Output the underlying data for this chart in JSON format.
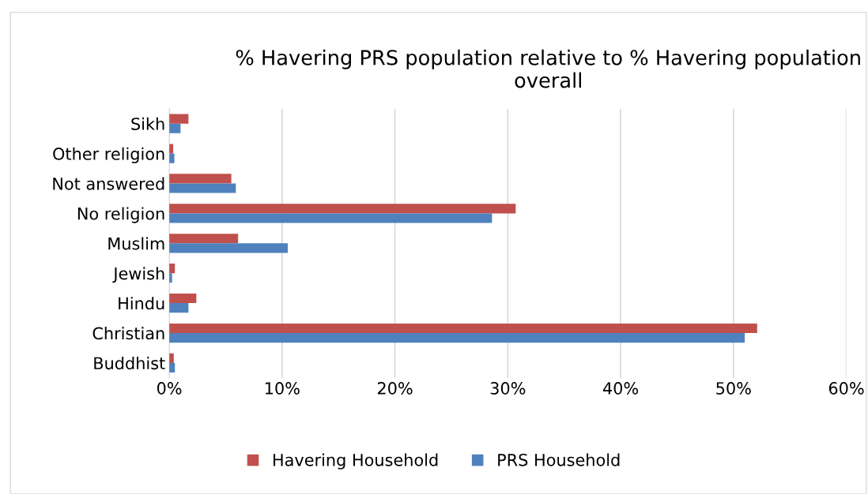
{
  "chart_data": {
    "type": "bar",
    "orientation": "horizontal",
    "title": "% Havering PRS population relative to % Havering population overall",
    "categories": [
      "Sikh",
      "Other religion",
      "Not answered",
      "No religion",
      "Muslim",
      "Jewish",
      "Hindu",
      "Christian",
      "Buddhist"
    ],
    "series": [
      {
        "name": "Havering Household",
        "color": "#c0504d",
        "values": [
          1.7,
          0.35,
          5.5,
          30.7,
          6.1,
          0.5,
          2.4,
          52.1,
          0.4
        ]
      },
      {
        "name": "PRS Household",
        "color": "#4f81bd",
        "values": [
          1.0,
          0.45,
          5.9,
          28.6,
          10.5,
          0.25,
          1.7,
          51.0,
          0.5
        ]
      }
    ],
    "xlim": [
      0,
      60
    ],
    "xticks": [
      {
        "value": 0,
        "label": "0%"
      },
      {
        "value": 10,
        "label": "10%"
      },
      {
        "value": 20,
        "label": "20%"
      },
      {
        "value": 30,
        "label": "30%"
      },
      {
        "value": 40,
        "label": "40%"
      },
      {
        "value": 50,
        "label": "50%"
      },
      {
        "value": 60,
        "label": "60%"
      }
    ],
    "grid": "x",
    "legend": "bottom"
  }
}
